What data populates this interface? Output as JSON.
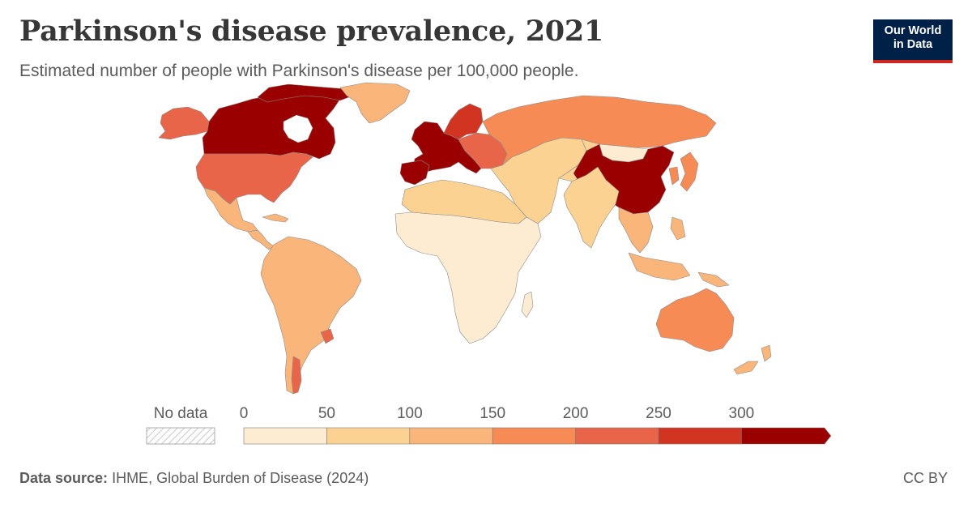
{
  "header": {
    "title": "Parkinson's disease prevalence, 2021",
    "subtitle": "Estimated number of people with Parkinson's disease per 100,000 people."
  },
  "logo": {
    "line1": "Our World",
    "line2": "in Data",
    "bg_color": "#002147",
    "accent_color": "#ce261e"
  },
  "legend": {
    "no_data_label": "No data",
    "tick_labels": [
      "0",
      "50",
      "100",
      "150",
      "200",
      "250",
      "300"
    ],
    "bins": [
      {
        "from": 0,
        "to": 50,
        "color": "#fdecd2"
      },
      {
        "from": 50,
        "to": 100,
        "color": "#fcd293"
      },
      {
        "from": 100,
        "to": 150,
        "color": "#f9b57a"
      },
      {
        "from": 150,
        "to": 200,
        "color": "#f68b55"
      },
      {
        "from": 200,
        "to": 250,
        "color": "#e8654a"
      },
      {
        "from": 250,
        "to": 300,
        "color": "#d13521"
      },
      {
        "from": 300,
        "to": null,
        "color": "#9b0000"
      }
    ]
  },
  "map_regions": [
    {
      "region": "Canada",
      "color": "#9b0000"
    },
    {
      "region": "Greenland",
      "color": "#f9b57a"
    },
    {
      "region": "Alaska",
      "color": "#e8654a"
    },
    {
      "region": "United States",
      "color": "#e8654a"
    },
    {
      "region": "Mexico",
      "color": "#f9b57a"
    },
    {
      "region": "Central America",
      "color": "#f9b57a"
    },
    {
      "region": "South America",
      "color": "#f9b57a"
    },
    {
      "region": "Uruguay",
      "color": "#e8654a"
    },
    {
      "region": "Western Europe",
      "color": "#9b0000"
    },
    {
      "region": "Scandinavia",
      "color": "#d13521"
    },
    {
      "region": "Eastern Europe",
      "color": "#e8654a"
    },
    {
      "region": "Russia",
      "color": "#f68b55"
    },
    {
      "region": "Middle East",
      "color": "#fcd293"
    },
    {
      "region": "Central Asia",
      "color": "#fcd293"
    },
    {
      "region": "Mongolia",
      "color": "#fdecd2"
    },
    {
      "region": "China",
      "color": "#9b0000"
    },
    {
      "region": "Korea and Japan",
      "color": "#f68b55"
    },
    {
      "region": "India",
      "color": "#fcd293"
    },
    {
      "region": "Southeast Asia",
      "color": "#f9b57a"
    },
    {
      "region": "North Africa",
      "color": "#fcd293"
    },
    {
      "region": "Sub-Saharan Africa",
      "color": "#fdecd2"
    },
    {
      "region": "Australia",
      "color": "#f68b55"
    },
    {
      "region": "New Zealand",
      "color": "#f9b57a"
    }
  ],
  "footer": {
    "source_label": "Data source:",
    "source_text": "IHME, Global Burden of Disease (2024)",
    "license": "CC BY"
  }
}
